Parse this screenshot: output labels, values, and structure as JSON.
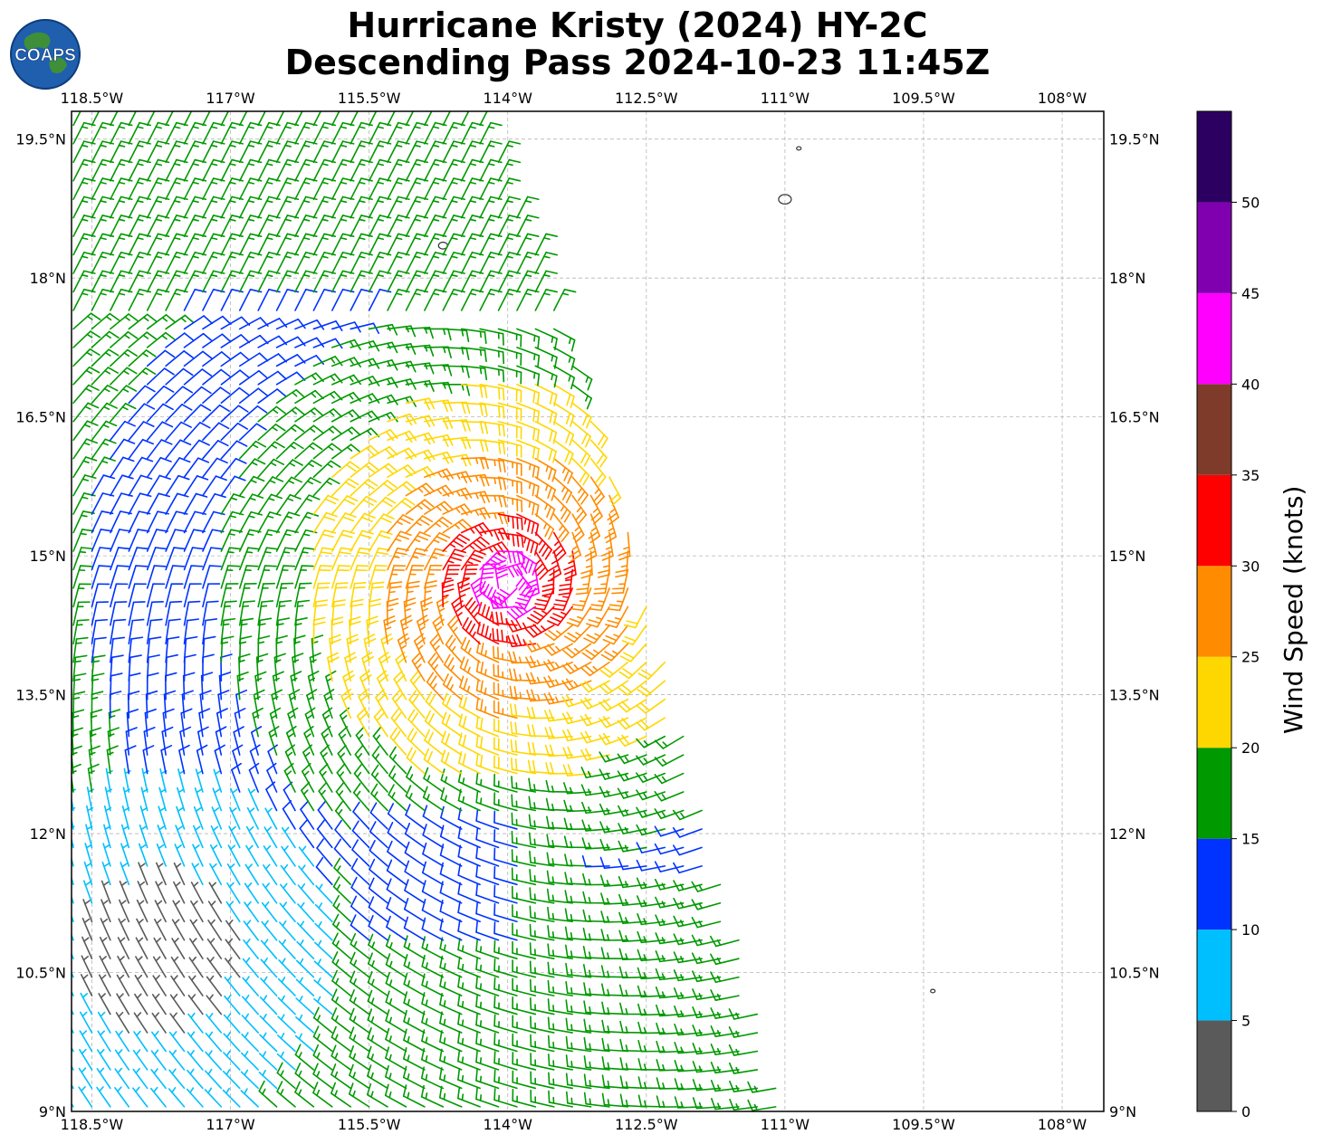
{
  "title": {
    "line1": "Hurricane Kristy (2024) HY-2C",
    "line2": "Descending Pass 2024-10-23 11:45Z"
  },
  "logo": {
    "text": "COAPS"
  },
  "map": {
    "lon_range": [
      -118.72,
      -107.55
    ],
    "lat_range": [
      9.0,
      19.8
    ],
    "lon_ticks": [
      "118.5°W",
      "117°W",
      "115.5°W",
      "114°W",
      "112.5°W",
      "111°W",
      "109.5°W",
      "108°W"
    ],
    "lat_ticks": [
      "19.5°N",
      "18°N",
      "16.5°N",
      "15°N",
      "13.5°N",
      "12°N",
      "10.5°N",
      "9°N"
    ],
    "lon_tick_values": [
      -118.5,
      -117,
      -115.5,
      -114,
      -112.5,
      -111,
      -109.5,
      -108
    ],
    "lat_tick_values": [
      19.5,
      18,
      16.5,
      15,
      13.5,
      12,
      10.5,
      9
    ],
    "grid": true,
    "storm_center": {
      "lon": -114.0,
      "lat": 14.7
    },
    "swath_east_edge": [
      [
        -114.3,
        19.8
      ],
      [
        -113.5,
        17.8
      ],
      [
        -112.6,
        15.0
      ],
      [
        -111.0,
        9.0
      ]
    ],
    "islands": [
      {
        "name": "",
        "lon": -111.0,
        "lat": 18.85
      },
      {
        "name": "",
        "lon": -110.85,
        "lat": 19.4
      },
      {
        "name": "",
        "lon": -114.7,
        "lat": 18.35
      },
      {
        "name": "",
        "lon": -109.4,
        "lat": 10.3
      }
    ]
  },
  "colorbar": {
    "label": "Wind Speed (knots)",
    "ticks": [
      "0",
      "5",
      "10",
      "15",
      "20",
      "25",
      "30",
      "35",
      "40",
      "45",
      "50"
    ],
    "bins": [
      {
        "min": 0,
        "max": 5,
        "color": "#5a5a5a"
      },
      {
        "min": 5,
        "max": 10,
        "color": "#00bfff"
      },
      {
        "min": 10,
        "max": 15,
        "color": "#0033ff"
      },
      {
        "min": 15,
        "max": 20,
        "color": "#009900"
      },
      {
        "min": 20,
        "max": 25,
        "color": "#ffd700"
      },
      {
        "min": 25,
        "max": 30,
        "color": "#ff8c00"
      },
      {
        "min": 30,
        "max": 35,
        "color": "#ff0000"
      },
      {
        "min": 35,
        "max": 40,
        "color": "#7f3b2a"
      },
      {
        "min": 40,
        "max": 45,
        "color": "#ff00ff"
      },
      {
        "min": 45,
        "max": 50,
        "color": "#8000b0"
      },
      {
        "min": 50,
        "max": 55,
        "color": "#2b0060"
      }
    ]
  }
}
